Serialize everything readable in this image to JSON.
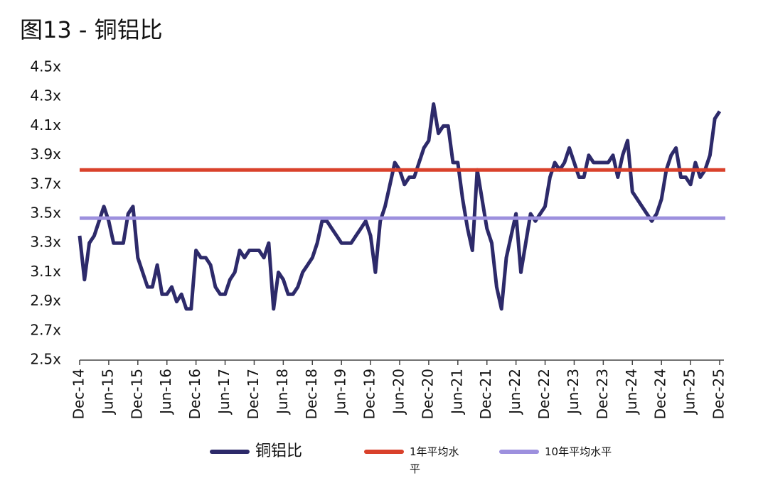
{
  "chart_data": {
    "type": "line",
    "title": "图13 - 铜铝比",
    "x": [
      "2014-12",
      "2015-01",
      "2015-02",
      "2015-03",
      "2015-04",
      "2015-05",
      "2015-06",
      "2015-07",
      "2015-08",
      "2015-09",
      "2015-10",
      "2015-11",
      "2015-12",
      "2016-01",
      "2016-02",
      "2016-03",
      "2016-04",
      "2016-05",
      "2016-06",
      "2016-07",
      "2016-08",
      "2016-09",
      "2016-10",
      "2016-11",
      "2016-12",
      "2017-01",
      "2017-02",
      "2017-03",
      "2017-04",
      "2017-05",
      "2017-06",
      "2017-07",
      "2017-08",
      "2017-09",
      "2017-10",
      "2017-11",
      "2017-12",
      "2018-01",
      "2018-02",
      "2018-03",
      "2018-04",
      "2018-05",
      "2018-06",
      "2018-07",
      "2018-08",
      "2018-09",
      "2018-10",
      "2018-11",
      "2018-12",
      "2019-01",
      "2019-02",
      "2019-03",
      "2019-04",
      "2019-05",
      "2019-06",
      "2019-07",
      "2019-08",
      "2019-09",
      "2019-10",
      "2019-11",
      "2019-12",
      "2020-01",
      "2020-02",
      "2020-03",
      "2020-04",
      "2020-05",
      "2020-06",
      "2020-07",
      "2020-08",
      "2020-09",
      "2020-10",
      "2020-11",
      "2020-12",
      "2021-01",
      "2021-02",
      "2021-03",
      "2021-04",
      "2021-05",
      "2021-06",
      "2021-07",
      "2021-08",
      "2021-09",
      "2021-10",
      "2021-11",
      "2021-12",
      "2022-01",
      "2022-02",
      "2022-03",
      "2022-04",
      "2022-05",
      "2022-06",
      "2022-07",
      "2022-08",
      "2022-09",
      "2022-10",
      "2022-11",
      "2022-12",
      "2023-01",
      "2023-02",
      "2023-03",
      "2023-04",
      "2023-05",
      "2023-06",
      "2023-07",
      "2023-08",
      "2023-09",
      "2023-10",
      "2023-11",
      "2023-12",
      "2024-01",
      "2024-02",
      "2024-03",
      "2024-04",
      "2024-05",
      "2024-06",
      "2024-07",
      "2024-08",
      "2024-09",
      "2024-10",
      "2024-11",
      "2024-12",
      "2025-01",
      "2025-02",
      "2025-03",
      "2025-04",
      "2025-05",
      "2025-06",
      "2025-07",
      "2025-08",
      "2025-09",
      "2025-10",
      "2025-11",
      "2025-12"
    ],
    "series": [
      {
        "name": "铜铝比",
        "color": "#2d2a6a",
        "values": [
          3.35,
          3.05,
          3.3,
          3.35,
          3.45,
          3.55,
          3.45,
          3.3,
          3.3,
          3.3,
          3.5,
          3.55,
          3.2,
          3.1,
          3.0,
          3.0,
          3.15,
          2.95,
          2.95,
          3.0,
          2.9,
          2.95,
          2.85,
          2.85,
          3.25,
          3.2,
          3.2,
          3.15,
          3.0,
          2.95,
          2.95,
          3.05,
          3.1,
          3.25,
          3.2,
          3.25,
          3.25,
          3.25,
          3.2,
          3.3,
          2.85,
          3.1,
          3.05,
          2.95,
          2.95,
          3.0,
          3.1,
          3.15,
          3.2,
          3.3,
          3.45,
          3.45,
          3.4,
          3.35,
          3.3,
          3.3,
          3.3,
          3.35,
          3.4,
          3.45,
          3.35,
          3.1,
          3.45,
          3.55,
          3.7,
          3.85,
          3.8,
          3.7,
          3.75,
          3.75,
          3.85,
          3.95,
          4.0,
          4.25,
          4.05,
          4.1,
          4.1,
          3.85,
          3.85,
          3.6,
          3.4,
          3.25,
          3.8,
          3.6,
          3.4,
          3.3,
          3.0,
          2.85,
          3.2,
          3.35,
          3.5,
          3.1,
          3.3,
          3.5,
          3.45,
          3.5,
          3.55,
          3.75,
          3.85,
          3.8,
          3.85,
          3.95,
          3.85,
          3.75,
          3.75,
          3.9,
          3.85,
          3.85,
          3.85,
          3.85,
          3.9,
          3.75,
          3.9,
          4.0,
          3.65,
          3.6,
          3.55,
          3.5,
          3.45,
          3.5,
          3.6,
          3.8,
          3.9,
          3.95,
          3.75,
          3.75,
          3.7,
          3.85,
          3.75,
          3.8,
          3.9,
          4.15,
          4.2
        ]
      }
    ],
    "reference_lines": [
      {
        "name": "1年平均水平",
        "color": "#d9412b",
        "value": 3.8
      },
      {
        "name": "10年平均水平",
        "color": "#9d90de",
        "value": 3.47
      }
    ],
    "ylim": [
      2.5,
      4.5
    ],
    "yticks": [
      {
        "value": 2.5,
        "label": "2.5x"
      },
      {
        "value": 2.7,
        "label": "2.7x"
      },
      {
        "value": 2.9,
        "label": "2.9x"
      },
      {
        "value": 3.1,
        "label": "3.1x"
      },
      {
        "value": 3.3,
        "label": "3.3x"
      },
      {
        "value": 3.5,
        "label": "3.5x"
      },
      {
        "value": 3.7,
        "label": "3.7x"
      },
      {
        "value": 3.9,
        "label": "3.9x"
      },
      {
        "value": 4.1,
        "label": "4.1x"
      },
      {
        "value": 4.3,
        "label": "4.3x"
      },
      {
        "value": 4.5,
        "label": "4.5x"
      }
    ],
    "xticks": [
      {
        "value": "2014-12",
        "label": "Dec-14"
      },
      {
        "value": "2015-06",
        "label": "Jun-15"
      },
      {
        "value": "2015-12",
        "label": "Dec-15"
      },
      {
        "value": "2016-06",
        "label": "Jun-16"
      },
      {
        "value": "2016-12",
        "label": "Dec-16"
      },
      {
        "value": "2017-06",
        "label": "Jun-17"
      },
      {
        "value": "2017-12",
        "label": "Dec-17"
      },
      {
        "value": "2018-06",
        "label": "Jun-18"
      },
      {
        "value": "2018-12",
        "label": "Dec-18"
      },
      {
        "value": "2019-06",
        "label": "Jun-19"
      },
      {
        "value": "2019-12",
        "label": "Dec-19"
      },
      {
        "value": "2020-06",
        "label": "Jun-20"
      },
      {
        "value": "2020-12",
        "label": "Dec-20"
      },
      {
        "value": "2021-06",
        "label": "Jun-21"
      },
      {
        "value": "2021-12",
        "label": "Dec-21"
      },
      {
        "value": "2022-06",
        "label": "Jun-22"
      },
      {
        "value": "2022-12",
        "label": "Dec-22"
      },
      {
        "value": "2023-06",
        "label": "Jun-23"
      },
      {
        "value": "2023-12",
        "label": "Dec-23"
      },
      {
        "value": "2024-06",
        "label": "Jun-24"
      },
      {
        "value": "2024-12",
        "label": "Dec-24"
      },
      {
        "value": "2025-06",
        "label": "Jun-25"
      },
      {
        "value": "2025-12",
        "label": "Dec-25"
      }
    ],
    "grid": false
  }
}
